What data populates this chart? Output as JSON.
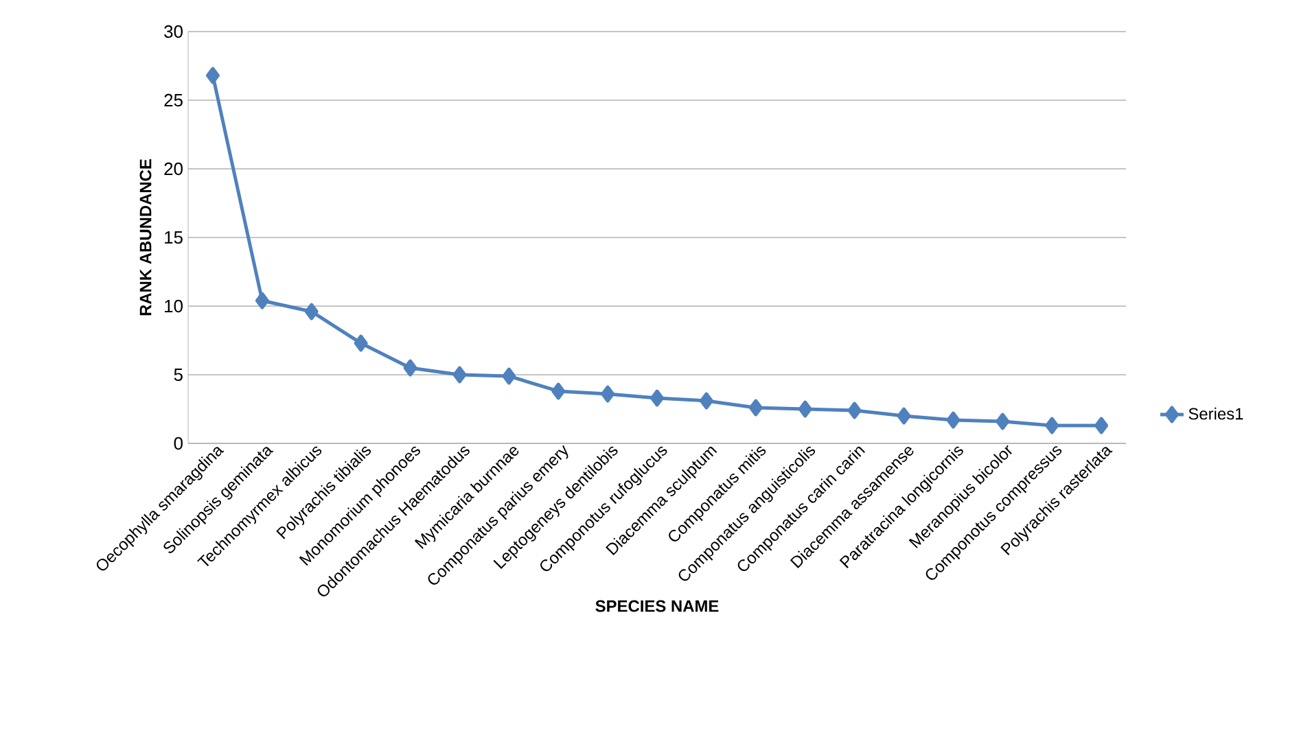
{
  "chart_data": {
    "type": "line",
    "xlabel": "SPECIES NAME",
    "ylabel": "RANK ABUNDANCE",
    "categories": [
      "Oecophylla smaragdina",
      "Solinopsis geminata",
      "Technomyrmex albicus",
      "Polyrachis tibialis",
      "Monomorium phonoes",
      "Odontomachus Haematodus",
      "Mymicaria burnnae",
      "Componatus parius emery",
      "Leptogeneys dentilobis",
      "Componotus rufoglucus",
      "Diacemma sculptum",
      "Componatus mitis",
      "Componatus anguisticolis",
      "Componatus carin carin",
      "Diacemma assamense",
      "Paratracina longicornis",
      "Meranopius bicolor",
      "Componotus compressus",
      "Polyrachis rasterlata"
    ],
    "series": [
      {
        "name": "Series1",
        "color": "#4f81bd",
        "values": [
          26.8,
          10.4,
          9.6,
          7.3,
          5.5,
          5.0,
          4.9,
          3.8,
          3.6,
          3.3,
          3.1,
          2.6,
          2.5,
          2.4,
          2.0,
          1.7,
          1.6,
          1.3,
          1.3
        ]
      }
    ],
    "ylim": [
      0,
      30
    ],
    "yticks": [
      0,
      5,
      10,
      15,
      20,
      25,
      30
    ],
    "grid": "y",
    "legend": "right",
    "marker": "diamond",
    "line_style": "solid"
  }
}
